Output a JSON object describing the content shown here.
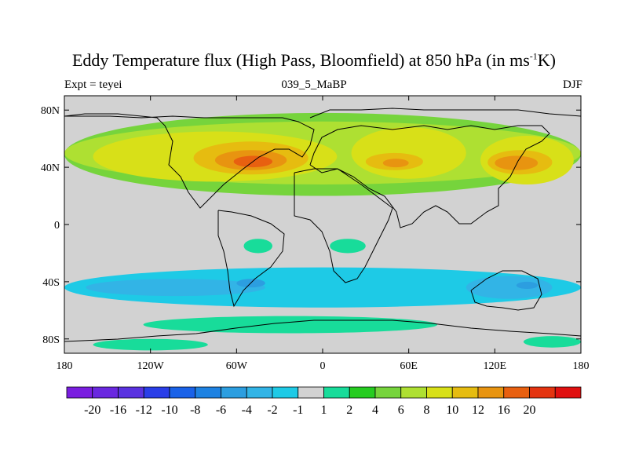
{
  "title": "Eddy Temperature flux (High Pass, Bloomfield) at 850 hPa (in ms",
  "title_sup": "-1",
  "title_tail": "K)",
  "left_label": "Expt = teyei",
  "center_label": "039_5_MaBP",
  "right_label": "DJF",
  "chart_data": {
    "type": "heatmap",
    "title": "Eddy Temperature flux (High Pass, Bloomfield) at 850 hPa (in ms-1K)",
    "xlim": [
      -180,
      180
    ],
    "ylim": [
      -90,
      90
    ],
    "x_ticks": [
      {
        "v": -180,
        "label": "180"
      },
      {
        "v": -120,
        "label": "120W"
      },
      {
        "v": -60,
        "label": "60W"
      },
      {
        "v": 0,
        "label": "0"
      },
      {
        "v": 60,
        "label": "60E"
      },
      {
        "v": 120,
        "label": "120E"
      },
      {
        "v": 180,
        "label": "180"
      }
    ],
    "y_ticks": [
      {
        "v": 80,
        "label": "80N"
      },
      {
        "v": 40,
        "label": "40N"
      },
      {
        "v": 0,
        "label": "0"
      },
      {
        "v": -40,
        "label": "40S"
      },
      {
        "v": -80,
        "label": "80S"
      }
    ],
    "colorbar": {
      "colors": [
        "#7a1ee0",
        "#6a28e0",
        "#5a32e0",
        "#2a3ee8",
        "#1a62e8",
        "#1e82e2",
        "#2c9ee0",
        "#32b4e6",
        "#1ecae6",
        "#d2d2d2",
        "#18dc9a",
        "#26cc20",
        "#76d43c",
        "#aee032",
        "#d8e018",
        "#e6bc10",
        "#e89410",
        "#e86010",
        "#e43410",
        "#e01010"
      ],
      "labels": [
        "-20",
        "-16",
        "-12",
        "-10",
        "-8",
        "-6",
        "-4",
        "-2",
        "-1",
        "1",
        "2",
        "4",
        "6",
        "8",
        "10",
        "12",
        "16",
        "20"
      ]
    },
    "features": [
      {
        "level": 12,
        "lon": [
          -180,
          180
        ],
        "lat": [
          20,
          78
        ]
      },
      {
        "level": 13,
        "lon": [
          -180,
          180
        ],
        "lat": [
          28,
          72
        ]
      },
      {
        "level": 14,
        "lon": [
          -160,
          10
        ],
        "lat": [
          30,
          65
        ]
      },
      {
        "level": 14,
        "lon": [
          20,
          100
        ],
        "lat": [
          32,
          68
        ]
      },
      {
        "level": 14,
        "lon": [
          110,
          175
        ],
        "lat": [
          28,
          62
        ]
      },
      {
        "level": 15,
        "lon": [
          -90,
          -10
        ],
        "lat": [
          35,
          58
        ]
      },
      {
        "level": 15,
        "lon": [
          30,
          70
        ],
        "lat": [
          38,
          50
        ]
      },
      {
        "level": 15,
        "lon": [
          115,
          160
        ],
        "lat": [
          35,
          52
        ]
      },
      {
        "level": 16,
        "lon": [
          -75,
          -25
        ],
        "lat": [
          38,
          52
        ]
      },
      {
        "level": 16,
        "lon": [
          42,
          60
        ],
        "lat": [
          40,
          46
        ]
      },
      {
        "level": 16,
        "lon": [
          120,
          150
        ],
        "lat": [
          38,
          48
        ]
      },
      {
        "level": 17,
        "lon": [
          -62,
          -35
        ],
        "lat": [
          40,
          48
        ]
      },
      {
        "level": 8,
        "lon": [
          -180,
          180
        ],
        "lat": [
          -58,
          -30
        ]
      },
      {
        "level": 7,
        "lon": [
          -165,
          -40
        ],
        "lat": [
          -50,
          -38
        ]
      },
      {
        "level": 7,
        "lon": [
          100,
          160
        ],
        "lat": [
          -52,
          -36
        ]
      },
      {
        "level": 6,
        "lon": [
          -60,
          -40
        ],
        "lat": [
          -44,
          -38
        ]
      },
      {
        "level": 6,
        "lon": [
          135,
          150
        ],
        "lat": [
          -45,
          -40
        ]
      },
      {
        "level": 10,
        "lon": [
          -55,
          -35
        ],
        "lat": [
          -20,
          -10
        ]
      },
      {
        "level": 10,
        "lon": [
          5,
          30
        ],
        "lat": [
          -20,
          -10
        ]
      },
      {
        "level": 10,
        "lon": [
          -125,
          80
        ],
        "lat": [
          -76,
          -64
        ]
      },
      {
        "level": 10,
        "lon": [
          -160,
          -80
        ],
        "lat": [
          -88,
          -80
        ]
      },
      {
        "level": 10,
        "lon": [
          140,
          180
        ],
        "lat": [
          -86,
          -78
        ]
      }
    ]
  }
}
